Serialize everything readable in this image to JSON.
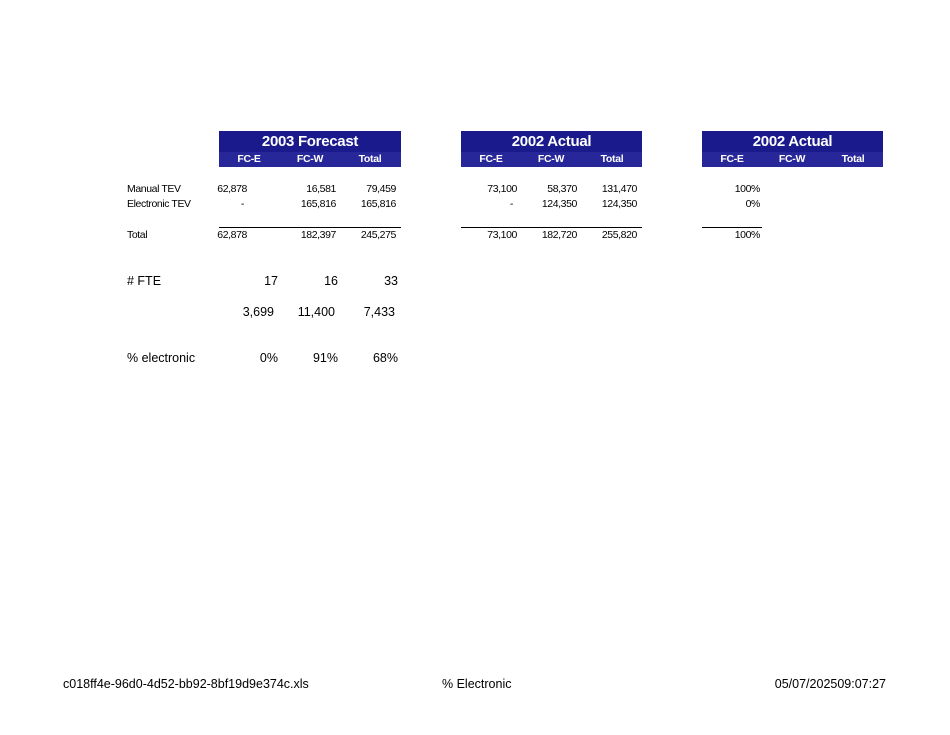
{
  "blocks": [
    {
      "title": "2003 Forecast",
      "columns": [
        "FC-E",
        "FC-W",
        "Total"
      ],
      "manual": [
        "62,878",
        "16,581",
        "79,459"
      ],
      "electronic": [
        "-",
        "165,816",
        "165,816"
      ],
      "total": [
        "62,878",
        "182,397",
        "245,275"
      ]
    },
    {
      "title": "2002 Actual",
      "columns": [
        "FC-E",
        "FC-W",
        "Total"
      ],
      "manual": [
        "73,100",
        "58,370",
        "131,470"
      ],
      "electronic": [
        "-",
        "124,350",
        "124,350"
      ],
      "total": [
        "73,100",
        "182,720",
        "255,820"
      ]
    },
    {
      "title": "2002 Actual",
      "columns": [
        "FC-E",
        "FC-W",
        "Total"
      ],
      "manual": [
        "100%",
        "",
        ""
      ],
      "electronic": [
        "0%",
        "",
        ""
      ],
      "total": [
        "100%",
        "",
        ""
      ]
    }
  ],
  "row_labels": {
    "manual": "Manual TEV",
    "electronic": "Electronic TEV",
    "total": "Total"
  },
  "fte": {
    "label": "# FTE",
    "values": [
      "17",
      "16",
      "33"
    ]
  },
  "per_fte": {
    "label": "",
    "values": [
      "3,699",
      "11,400",
      "7,433"
    ]
  },
  "pct_electronic": {
    "label": "% electronic",
    "values": [
      "0%",
      "91%",
      "68%"
    ]
  },
  "footer": {
    "left": "c018ff4e-96d0-4d52-bb92-8bf19d9e374c.xls",
    "center": "% Electronic",
    "right": "05/07/202509:07:27"
  },
  "colors": {
    "header_bg": "#1a1a8c",
    "subheader_bg": "#27279a"
  }
}
